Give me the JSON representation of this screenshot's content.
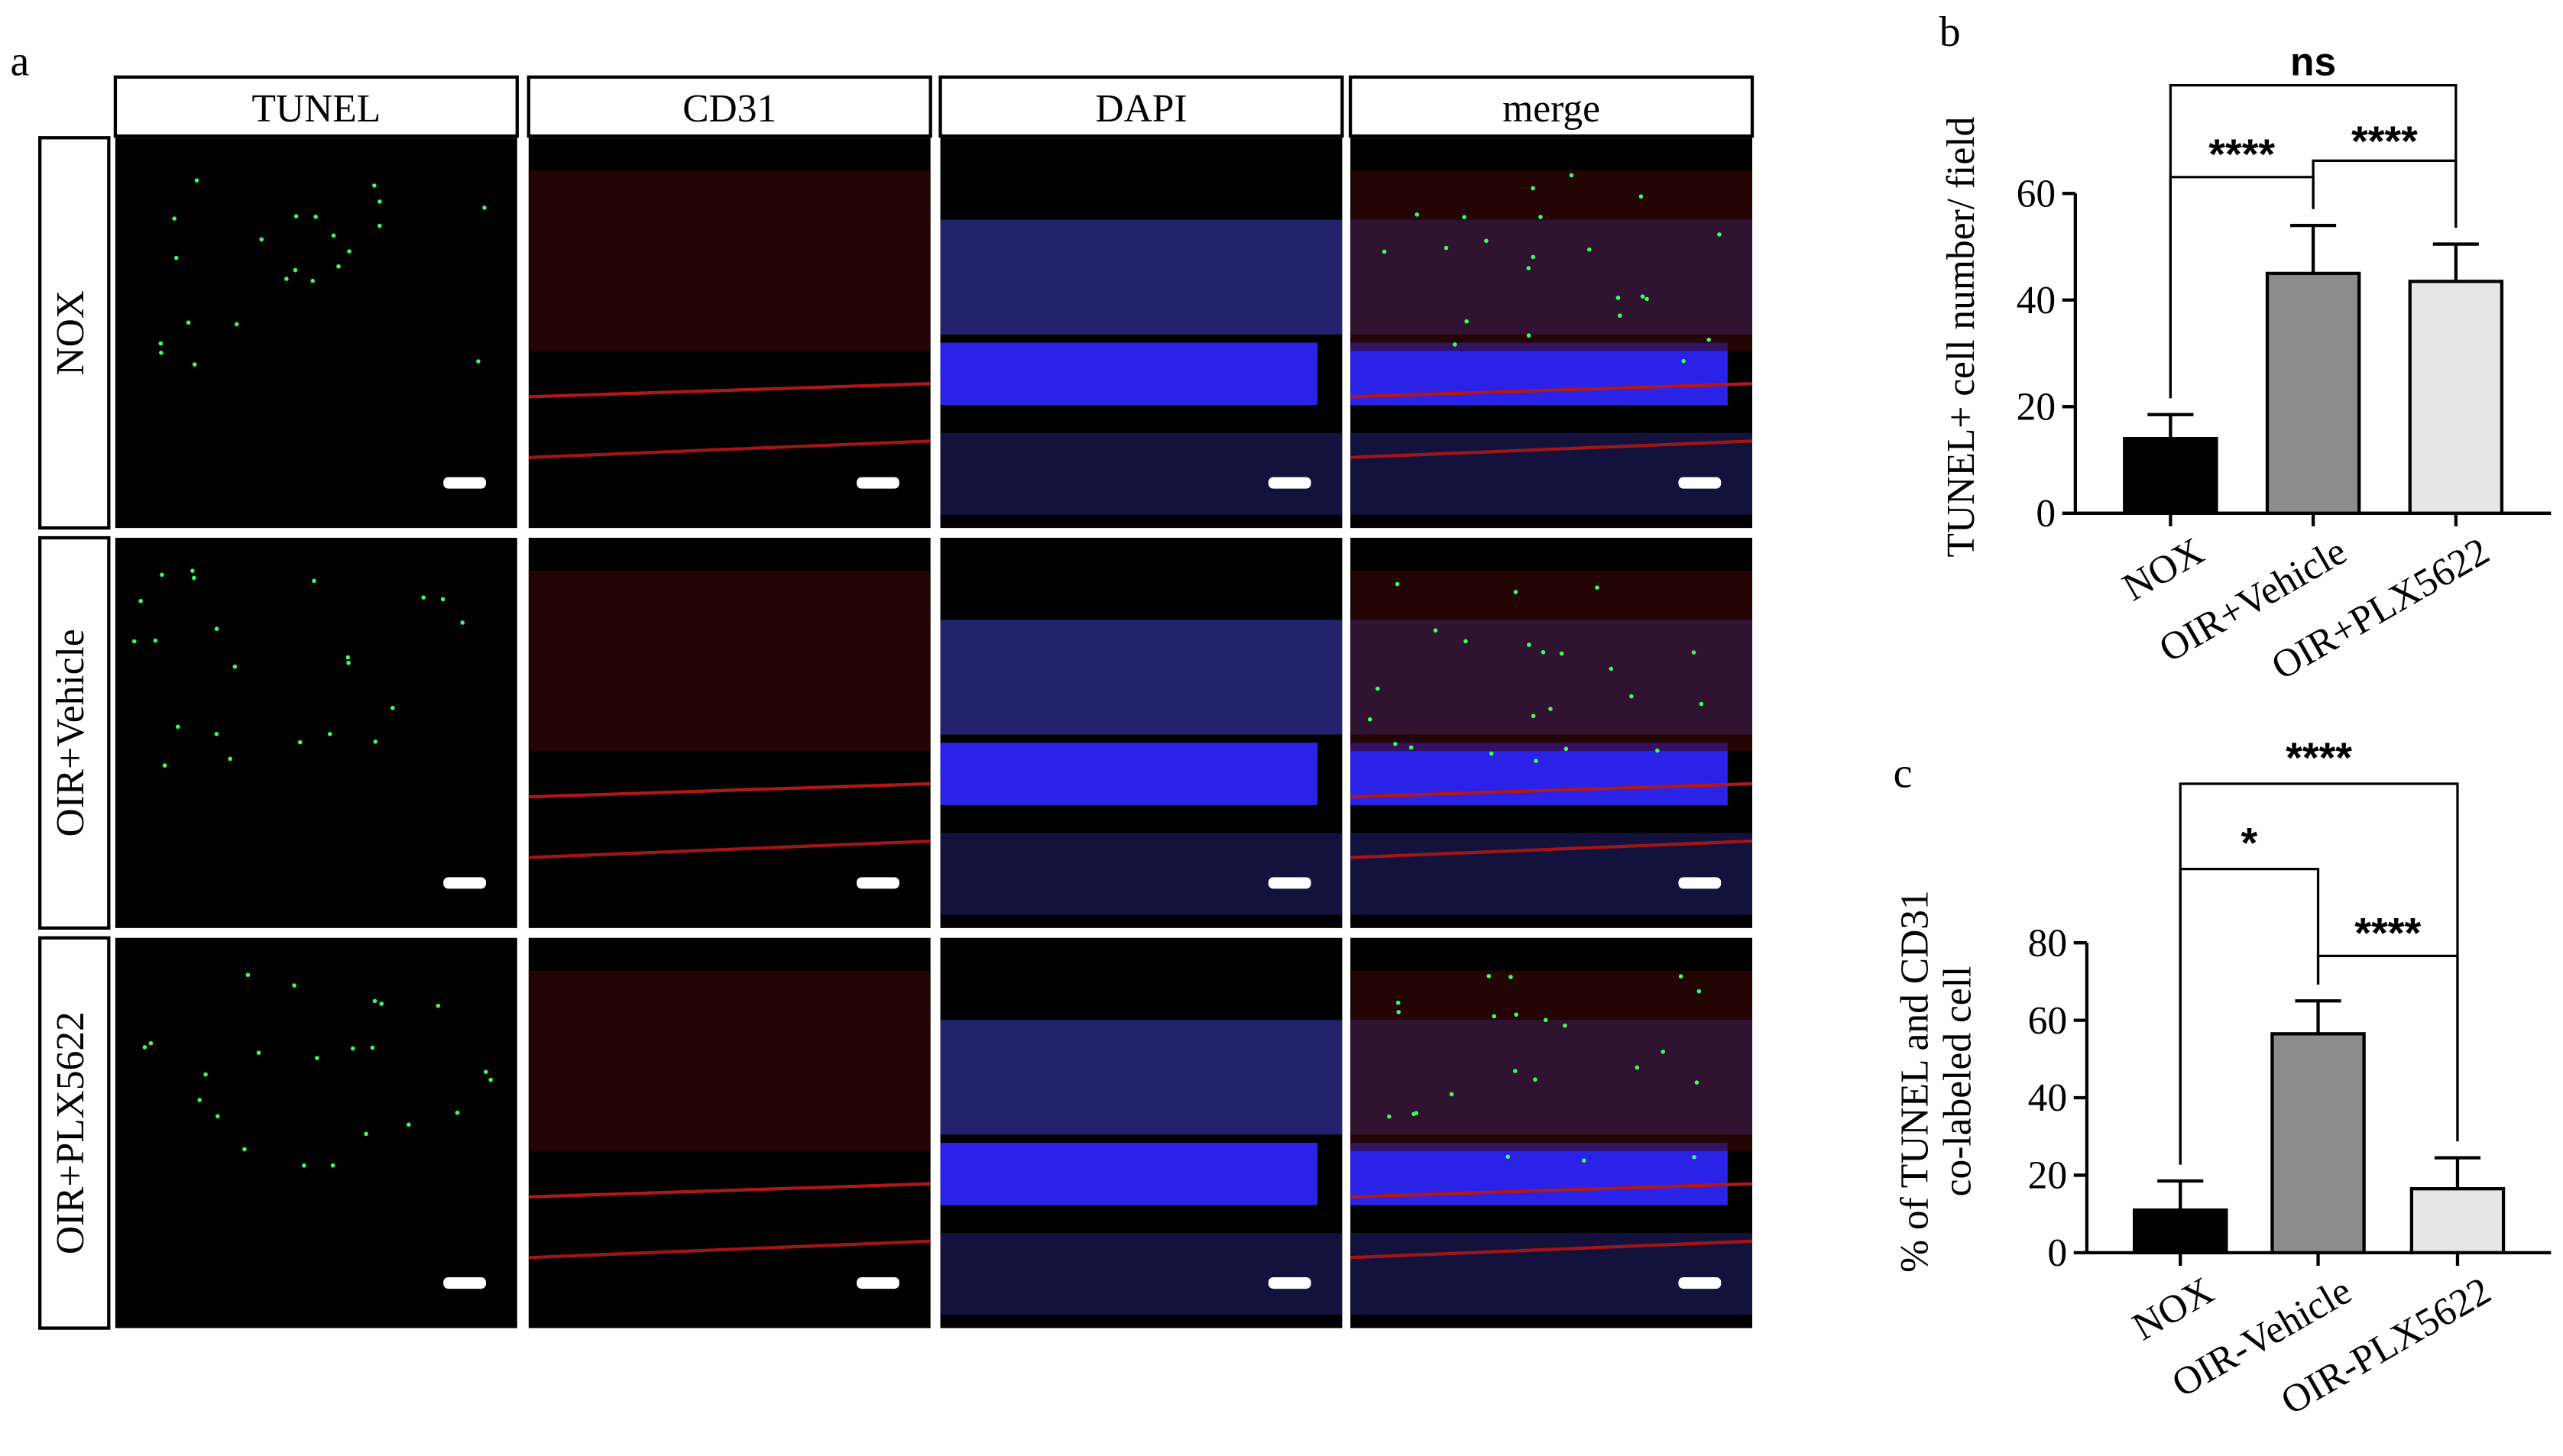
{
  "panel_a": {
    "letter": "a",
    "columns": [
      "TUNEL",
      "CD31",
      "DAPI",
      "merge"
    ],
    "rows": [
      "NOX",
      "OIR+Vehicle",
      "OIR+PLX5622"
    ]
  },
  "chart_data": [
    {
      "type": "bar",
      "letter": "b",
      "ylabel": "TUNEL+ cell number/ field",
      "categories": [
        "NOX",
        "OIR+Vehicle",
        "OIR+PLX5622"
      ],
      "values": [
        14,
        45,
        43.5
      ],
      "errors": [
        4.5,
        9,
        7
      ],
      "colors": [
        "#000000",
        "#8c8c8c",
        "#e6e6e6"
      ],
      "ylim": [
        0,
        60
      ],
      "yticks": [
        0,
        20,
        40,
        60
      ],
      "annotations": [
        "****",
        "****",
        "ns"
      ]
    },
    {
      "type": "bar",
      "letter": "c",
      "ylabel": [
        "% of TUNEL and CD31",
        "co-labeled cell"
      ],
      "categories": [
        "NOX",
        "OIR-Vehicle",
        "OIR-PLX5622"
      ],
      "values": [
        11,
        56.5,
        16.5
      ],
      "errors": [
        7.5,
        8.5,
        8
      ],
      "colors": [
        "#000000",
        "#8c8c8c",
        "#e6e6e6"
      ],
      "ylim": [
        0,
        80
      ],
      "yticks": [
        0,
        20,
        40,
        60,
        80
      ],
      "annotations": [
        "*",
        "****",
        "****"
      ]
    }
  ]
}
